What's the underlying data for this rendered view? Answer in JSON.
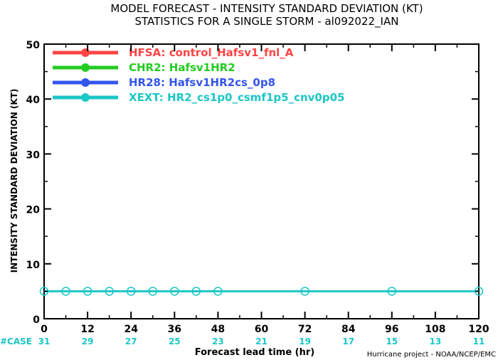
{
  "chart_data": {
    "type": "line",
    "title": "MODEL FORECAST - INTENSITY STANDARD DEVIATION (KT)",
    "subtitle": "STATISTICS FOR A SINGLE STORM - al092022_IAN",
    "xlabel": "Forecast lead time (hr)",
    "ylabel": "INTENSITY STANDARD DEVIATION (KT)",
    "xlim": [
      0,
      120
    ],
    "ylim": [
      0,
      50
    ],
    "x_ticks": [
      "0",
      "12",
      "24",
      "36",
      "48",
      "60",
      "72",
      "84",
      "96",
      "108",
      "120"
    ],
    "y_ticks": [
      "0",
      "10",
      "20",
      "30",
      "40",
      "50"
    ],
    "legend_position": "top-left",
    "series": [
      {
        "name": "HFSA: control_Hafsv1_fnl_A",
        "color": "#ff4444",
        "x": [],
        "y": []
      },
      {
        "name": "CHR2: Hafsv1HR2",
        "color": "#22cc22",
        "x": [],
        "y": []
      },
      {
        "name": "HR28: Hafsv1HR2cs_0p8",
        "color": "#3355ee",
        "x": [],
        "y": []
      },
      {
        "name": "XEXT: HR2_cs1p0_csmf1p5_cnv0p05",
        "color": "#1cc6c6",
        "x": [
          0,
          6,
          12,
          18,
          24,
          30,
          36,
          42,
          48,
          72,
          96,
          120
        ],
        "y": [
          5,
          5,
          5,
          5,
          5,
          5,
          5,
          5,
          5,
          5,
          5,
          5
        ]
      }
    ],
    "cases_label": "#CASE",
    "cases": [
      "31",
      "29",
      "27",
      "25",
      "23",
      "21",
      "19",
      "17",
      "15",
      "13",
      "11"
    ],
    "credit": "Hurricane project - NOAA/NCEP/EMC"
  }
}
